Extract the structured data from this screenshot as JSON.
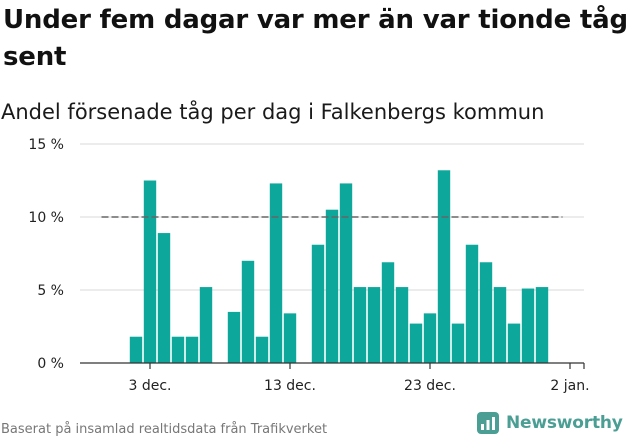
{
  "header": {
    "title": "Under fem dagar var mer än var tionde tåg sent",
    "subtitle": "Andel försenade tåg per dag i Falkenbergs kommun"
  },
  "footer": {
    "source": "Baserat på insamlad realtidsdata från Trafikverket",
    "brand": "Newsworthy"
  },
  "colors": {
    "bar": "#0da89b",
    "reference_line": "#666666",
    "gridline": "#d9d9d9",
    "axis": "#333333",
    "brand": "#4a9e94"
  },
  "chart_data": {
    "type": "bar",
    "title": "Under fem dagar var mer än var tionde tåg sent",
    "subtitle": "Andel försenade tåg per dag i Falkenbergs kommun",
    "xlabel": "",
    "ylabel": "",
    "x_axis": {
      "type": "date",
      "range": [
        "2019-11-28",
        "2020-01-03"
      ],
      "ticks": [
        {
          "date": "2019-12-03",
          "label": "3 dec."
        },
        {
          "date": "2019-12-13",
          "label": "13 dec."
        },
        {
          "date": "2019-12-23",
          "label": "23 dec."
        },
        {
          "date": "2020-01-02",
          "label": "2 jan."
        }
      ]
    },
    "y_axis": {
      "range": [
        0,
        15
      ],
      "ticks": [
        {
          "value": 0,
          "label": "0 %"
        },
        {
          "value": 5,
          "label": "5 %"
        },
        {
          "value": 10,
          "label": "10 %"
        },
        {
          "value": 15,
          "label": "15 %"
        }
      ],
      "unit": "%"
    },
    "grid": true,
    "legend": "none",
    "reference_line": {
      "value": 10,
      "style": "dashed",
      "from": "2019-11-30",
      "to": "2020-01-02"
    },
    "series": [
      {
        "values": [
          {
            "date": "2019-12-02",
            "value": 1.8
          },
          {
            "date": "2019-12-03",
            "value": 12.5
          },
          {
            "date": "2019-12-04",
            "value": 8.9
          },
          {
            "date": "2019-12-05",
            "value": 1.8
          },
          {
            "date": "2019-12-06",
            "value": 1.8
          },
          {
            "date": "2019-12-07",
            "value": 5.2
          },
          {
            "date": "2019-12-09",
            "value": 3.5
          },
          {
            "date": "2019-12-10",
            "value": 7.0
          },
          {
            "date": "2019-12-11",
            "value": 1.8
          },
          {
            "date": "2019-12-12",
            "value": 12.3
          },
          {
            "date": "2019-12-13",
            "value": 3.4
          },
          {
            "date": "2019-12-15",
            "value": 8.1
          },
          {
            "date": "2019-12-16",
            "value": 10.5
          },
          {
            "date": "2019-12-17",
            "value": 12.3
          },
          {
            "date": "2019-12-18",
            "value": 5.2
          },
          {
            "date": "2019-12-19",
            "value": 5.2
          },
          {
            "date": "2019-12-20",
            "value": 6.9
          },
          {
            "date": "2019-12-21",
            "value": 5.2
          },
          {
            "date": "2019-12-22",
            "value": 2.7
          },
          {
            "date": "2019-12-23",
            "value": 3.4
          },
          {
            "date": "2019-12-24",
            "value": 13.2
          },
          {
            "date": "2019-12-25",
            "value": 2.7
          },
          {
            "date": "2019-12-26",
            "value": 8.1
          },
          {
            "date": "2019-12-27",
            "value": 6.9
          },
          {
            "date": "2019-12-28",
            "value": 5.2
          },
          {
            "date": "2019-12-29",
            "value": 2.7
          },
          {
            "date": "2019-12-30",
            "value": 5.1
          },
          {
            "date": "2019-12-31",
            "value": 5.2
          }
        ]
      }
    ]
  }
}
